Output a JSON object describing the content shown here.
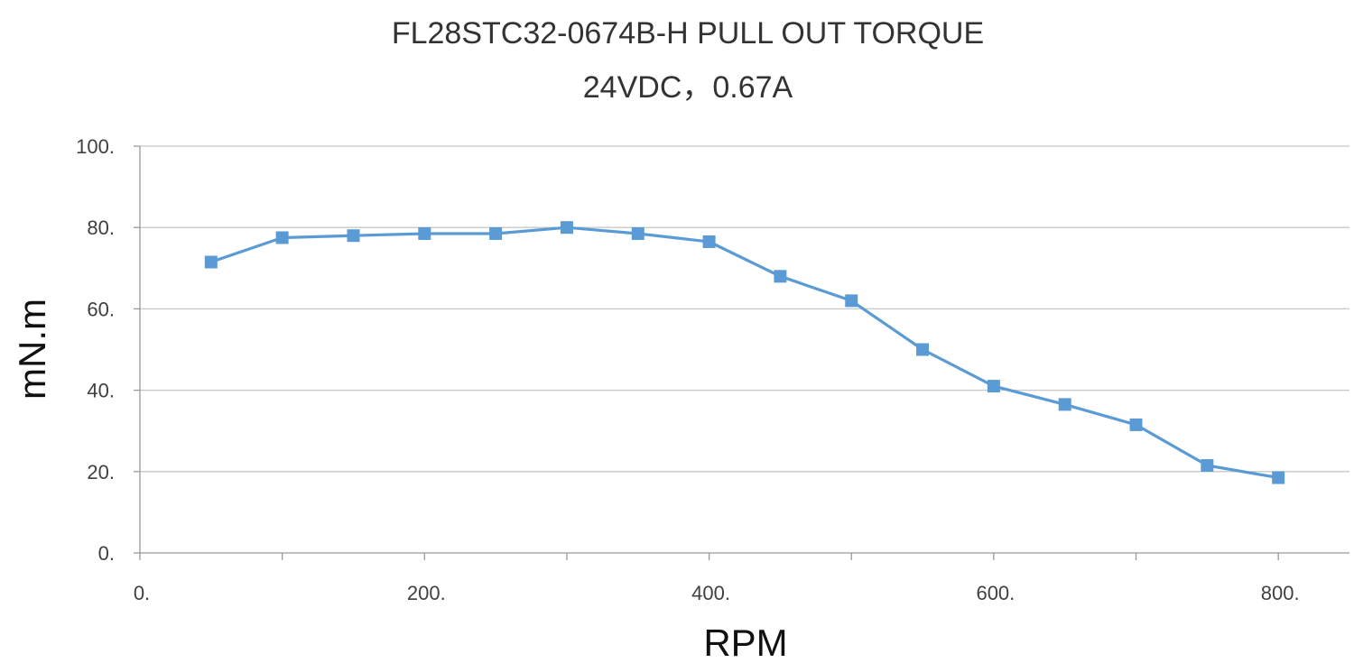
{
  "chart_data": {
    "type": "line",
    "title": "FL28STC32-0674B-H PULL OUT TORQUE",
    "subtitle": "24VDC，0.67A",
    "xlabel": "RPM",
    "ylabel": "mN.m",
    "xlim": [
      0,
      850
    ],
    "ylim": [
      0,
      100
    ],
    "x_ticks": [
      0,
      200,
      400,
      600,
      800
    ],
    "x_tick_labels": [
      "0.",
      "200.",
      "400.",
      "600.",
      "800."
    ],
    "y_ticks": [
      0,
      20,
      40,
      60,
      80,
      100
    ],
    "y_tick_labels": [
      "0.",
      "20.",
      "40.",
      "60.",
      "80.",
      "100."
    ],
    "grid": true,
    "series": [
      {
        "color": "#5b9bd5",
        "marker": "square",
        "x": [
          50,
          100,
          150,
          200,
          250,
          300,
          350,
          400,
          450,
          500,
          550,
          600,
          650,
          700,
          750,
          800
        ],
        "y": [
          71.5,
          77.5,
          78,
          78.5,
          78.5,
          80,
          78.5,
          76.5,
          68,
          62,
          50,
          41,
          36.5,
          31.5,
          21.5,
          18.5
        ]
      }
    ]
  }
}
